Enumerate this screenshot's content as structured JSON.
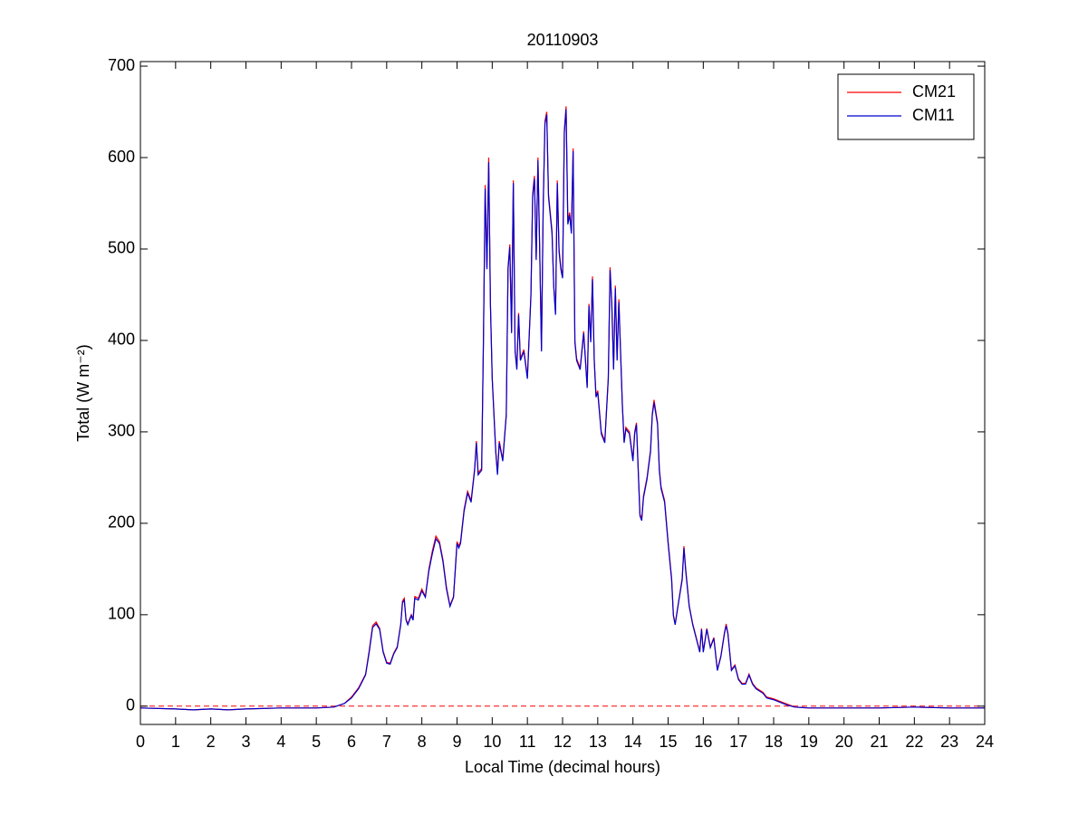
{
  "chart_data": {
    "type": "line",
    "title": "20110903",
    "xlabel": "Local Time (decimal hours)",
    "ylabel": "Total (W m⁻²)",
    "x": [
      0,
      1,
      1.5,
      2,
      2.5,
      3,
      4,
      5,
      5.5,
      5.8,
      6,
      6.2,
      6.4,
      6.5,
      6.6,
      6.7,
      6.8,
      6.9,
      7,
      7.1,
      7.2,
      7.3,
      7.4,
      7.45,
      7.5,
      7.55,
      7.6,
      7.7,
      7.75,
      7.8,
      7.9,
      8,
      8.1,
      8.2,
      8.3,
      8.4,
      8.5,
      8.6,
      8.7,
      8.8,
      8.9,
      9,
      9.05,
      9.1,
      9.2,
      9.3,
      9.4,
      9.5,
      9.55,
      9.6,
      9.7,
      9.75,
      9.8,
      9.85,
      9.9,
      9.95,
      10,
      10.1,
      10.15,
      10.2,
      10.3,
      10.4,
      10.45,
      10.5,
      10.55,
      10.6,
      10.65,
      10.7,
      10.75,
      10.8,
      10.9,
      11,
      11.1,
      11.15,
      11.2,
      11.25,
      11.3,
      11.35,
      11.4,
      11.45,
      11.5,
      11.55,
      11.6,
      11.7,
      11.75,
      11.8,
      11.85,
      11.9,
      11.95,
      12,
      12.05,
      12.1,
      12.15,
      12.2,
      12.25,
      12.3,
      12.35,
      12.4,
      12.5,
      12.6,
      12.7,
      12.75,
      12.8,
      12.85,
      12.9,
      12.95,
      13,
      13.1,
      13.2,
      13.3,
      13.35,
      13.4,
      13.45,
      13.5,
      13.55,
      13.6,
      13.7,
      13.75,
      13.8,
      13.9,
      14,
      14.05,
      14.1,
      14.2,
      14.25,
      14.3,
      14.4,
      14.5,
      14.55,
      14.6,
      14.7,
      14.75,
      14.8,
      14.9,
      15,
      15.1,
      15.15,
      15.2,
      15.3,
      15.4,
      15.45,
      15.5,
      15.6,
      15.7,
      15.8,
      15.9,
      15.95,
      16,
      16.1,
      16.2,
      16.3,
      16.4,
      16.5,
      16.6,
      16.65,
      16.7,
      16.8,
      16.9,
      17,
      17.1,
      17.2,
      17.3,
      17.4,
      17.5,
      17.7,
      17.8,
      18,
      18.2,
      18.4,
      18.6,
      19,
      20,
      21,
      22,
      23,
      24
    ],
    "series": [
      {
        "name": "CM21",
        "color": "#ff0000",
        "values": [
          -2,
          -3,
          -4,
          -3,
          -4,
          -3,
          -2,
          -2,
          -1,
          3,
          10,
          20,
          35,
          60,
          88,
          92,
          85,
          60,
          48,
          47,
          58,
          65,
          90,
          115,
          118,
          95,
          90,
          100,
          95,
          120,
          118,
          128,
          120,
          150,
          170,
          186,
          180,
          160,
          130,
          110,
          120,
          180,
          175,
          180,
          215,
          235,
          225,
          260,
          290,
          255,
          260,
          400,
          570,
          480,
          600,
          440,
          360,
          280,
          255,
          290,
          270,
          320,
          480,
          505,
          410,
          575,
          390,
          370,
          430,
          380,
          390,
          360,
          450,
          560,
          580,
          490,
          600,
          500,
          390,
          550,
          640,
          650,
          560,
          520,
          460,
          430,
          575,
          500,
          480,
          470,
          630,
          656,
          530,
          540,
          520,
          610,
          400,
          380,
          370,
          410,
          350,
          440,
          400,
          470,
          380,
          340,
          345,
          300,
          290,
          360,
          480,
          440,
          370,
          460,
          380,
          445,
          330,
          290,
          305,
          300,
          270,
          300,
          310,
          210,
          205,
          230,
          250,
          280,
          320,
          335,
          310,
          260,
          240,
          225,
          180,
          140,
          100,
          90,
          115,
          140,
          175,
          150,
          110,
          90,
          75,
          60,
          85,
          60,
          85,
          65,
          75,
          40,
          55,
          80,
          90,
          80,
          40,
          45,
          30,
          25,
          25,
          35,
          25,
          20,
          15,
          10,
          8,
          5,
          2,
          -1,
          -2,
          -2,
          -2,
          -1,
          -2,
          -2
        ]
      },
      {
        "name": "CM11",
        "color": "#0000cc",
        "values": [
          -2,
          -3,
          -4,
          -3,
          -4,
          -3,
          -2,
          -2,
          -1,
          3,
          9,
          19,
          34,
          58,
          86,
          90,
          84,
          59,
          47,
          46,
          57,
          64,
          89,
          113,
          116,
          94,
          89,
          99,
          94,
          118,
          116,
          126,
          119,
          148,
          167,
          183,
          178,
          158,
          128,
          109,
          119,
          178,
          173,
          178,
          213,
          233,
          223,
          258,
          288,
          253,
          258,
          398,
          566,
          478,
          595,
          438,
          358,
          278,
          253,
          288,
          268,
          318,
          478,
          502,
          408,
          572,
          388,
          368,
          428,
          378,
          388,
          358,
          448,
          557,
          577,
          488,
          597,
          498,
          388,
          547,
          637,
          647,
          557,
          517,
          458,
          428,
          572,
          497,
          478,
          468,
          627,
          653,
          527,
          537,
          517,
          607,
          398,
          378,
          368,
          408,
          348,
          438,
          398,
          467,
          378,
          338,
          343,
          298,
          288,
          358,
          477,
          438,
          368,
          457,
          378,
          442,
          328,
          288,
          303,
          298,
          268,
          298,
          308,
          208,
          203,
          228,
          248,
          278,
          318,
          332,
          308,
          258,
          238,
          223,
          178,
          138,
          99,
          89,
          114,
          138,
          173,
          148,
          109,
          89,
          74,
          59,
          84,
          59,
          84,
          64,
          74,
          39,
          54,
          79,
          88,
          79,
          39,
          44,
          29,
          24,
          24,
          34,
          24,
          19,
          14,
          9,
          7,
          4,
          1,
          -1,
          -2,
          -2,
          -2,
          -1,
          -2,
          -2
        ]
      }
    ],
    "hline": {
      "y": 0,
      "color": "#ff0000"
    },
    "xlim": [
      0,
      24
    ],
    "xticks": [
      0,
      1,
      2,
      3,
      4,
      5,
      6,
      7,
      8,
      9,
      10,
      11,
      12,
      13,
      14,
      15,
      16,
      17,
      18,
      19,
      20,
      21,
      22,
      23,
      24
    ],
    "ylim": [
      -20,
      705
    ],
    "yticks": [
      0,
      100,
      200,
      300,
      400,
      500,
      600,
      700
    ],
    "legend": "northeast",
    "grid": false
  }
}
